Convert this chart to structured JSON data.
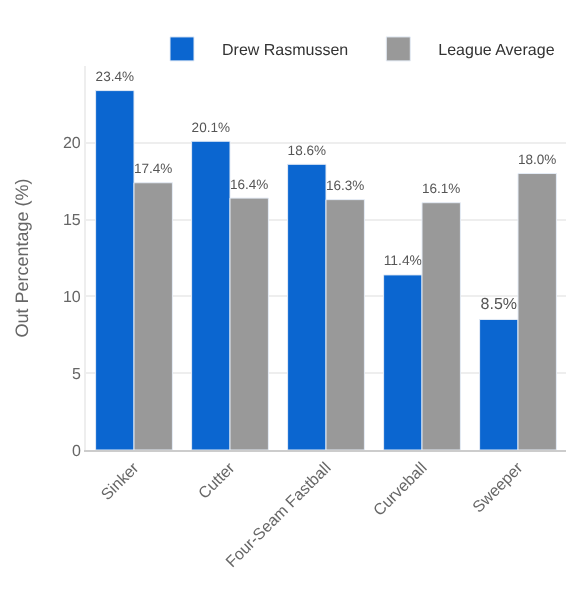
{
  "chart_data": {
    "type": "bar",
    "ylabel": "Out Percentage (%)",
    "categories": [
      "Sinker",
      "Cutter",
      "Four-Seam Fastball",
      "Curveball",
      "Sweeper"
    ],
    "series": [
      {
        "name": "Drew Rasmussen",
        "color": "#0b66d0",
        "values": [
          23.4,
          20.1,
          18.6,
          11.4,
          8.5
        ],
        "value_labels": [
          "23.4%",
          "20.1%",
          "18.6%",
          "11.4%",
          "8.5%"
        ]
      },
      {
        "name": "League Average",
        "color": "#999999",
        "values": [
          17.4,
          16.4,
          16.3,
          16.1,
          18.0
        ],
        "value_labels": [
          "17.4%",
          "16.4%",
          "16.3%",
          "16.1%",
          "18.0%"
        ]
      }
    ],
    "ylim": [
      0,
      25
    ],
    "yticks": [
      0,
      5,
      10,
      15,
      20
    ],
    "grid": "y",
    "legend": "top right"
  }
}
